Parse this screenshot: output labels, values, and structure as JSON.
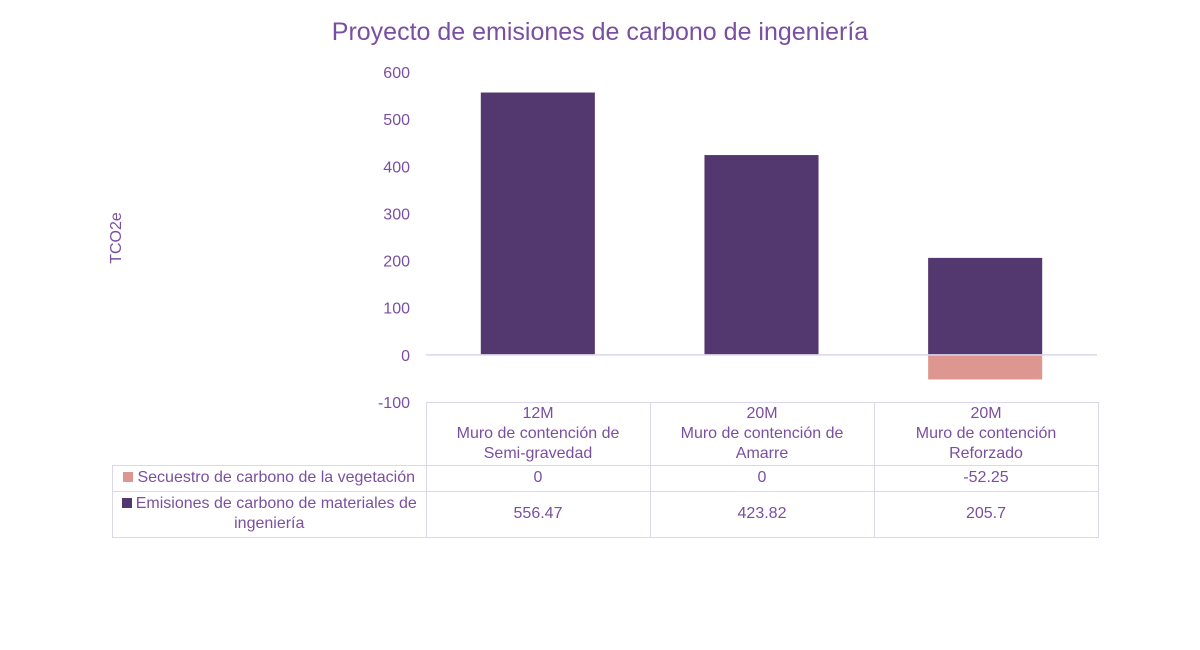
{
  "chart_data": {
    "type": "bar",
    "title": "Proyecto de emisiones de carbono de ingeniería",
    "ylabel": "TCO2e",
    "ylim": [
      -100,
      600
    ],
    "yticks": [
      "600",
      "500",
      "400",
      "300",
      "200",
      "100",
      "0",
      "-100"
    ],
    "categories": [
      [
        "12M",
        "Muro de contención de",
        "Semi-gravedad"
      ],
      [
        "20M",
        "Muro de contención de",
        "Amarre"
      ],
      [
        "20M",
        "Muro de contención",
        "Reforzado"
      ]
    ],
    "series": [
      {
        "name": "Secuestro de carbono de la vegetación",
        "color": "#DE9790",
        "values": [
          0,
          0,
          -52.25
        ],
        "labels": [
          "0",
          "0",
          "-52.25"
        ]
      },
      {
        "name": "Emisiones de carbono de materiales de ingeniería",
        "name_lines": [
          "Emisiones de carbono de materiales de",
          "ingeniería"
        ],
        "color": "#53386F",
        "values": [
          556.47,
          423.82,
          205.7
        ],
        "labels": [
          "556.47",
          "423.82",
          "205.7"
        ]
      }
    ],
    "legend": "table",
    "grid": false
  }
}
